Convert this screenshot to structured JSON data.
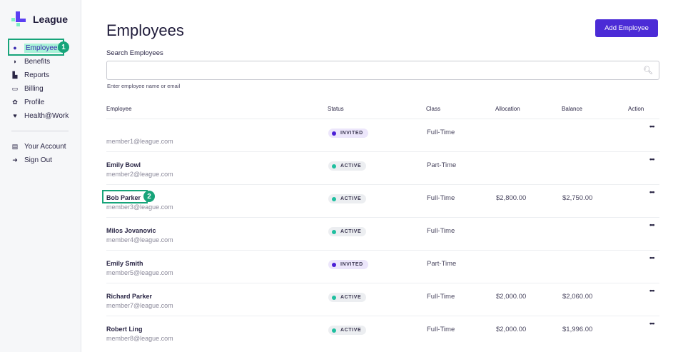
{
  "brand": {
    "name": "League"
  },
  "sidebar": {
    "items": [
      {
        "label": "Employees",
        "icon": "user-icon",
        "glyph": "●"
      },
      {
        "label": "Benefits",
        "icon": "shield-icon",
        "glyph": "◗"
      },
      {
        "label": "Reports",
        "icon": "chart-icon",
        "glyph": "▙"
      },
      {
        "label": "Billing",
        "icon": "credit-card-icon",
        "glyph": "▭"
      },
      {
        "label": "Profile",
        "icon": "gear-icon",
        "glyph": "✿"
      },
      {
        "label": "Health@Work",
        "icon": "heart-icon",
        "glyph": "♥"
      }
    ],
    "account_items": [
      {
        "label": "Your Account",
        "icon": "id-card-icon",
        "glyph": "▤"
      },
      {
        "label": "Sign Out",
        "icon": "sign-out-icon",
        "glyph": "➜"
      }
    ]
  },
  "annotations": [
    "1",
    "2"
  ],
  "page": {
    "title": "Employees",
    "add_button": "Add Employee",
    "search_label": "Search Employees",
    "search_value": "",
    "search_hint": "Enter employee name or email"
  },
  "table": {
    "headers": [
      "Employee",
      "Status",
      "Class",
      "Allocation",
      "Balance",
      "Action"
    ],
    "rows": [
      {
        "name": "",
        "email": "member1@league.com",
        "status": "INVITED",
        "class": "Full-Time",
        "allocation": "",
        "balance": ""
      },
      {
        "name": "Emily Bowl",
        "email": "member2@league.com",
        "status": "ACTIVE",
        "class": "Part-Time",
        "allocation": "",
        "balance": ""
      },
      {
        "name": "Bob Parker",
        "email": "member3@league.com",
        "status": "ACTIVE",
        "class": "Full-Time",
        "allocation": "$2,800.00",
        "balance": "$2,750.00"
      },
      {
        "name": "Milos Jovanovic",
        "email": "member4@league.com",
        "status": "ACTIVE",
        "class": "Full-Time",
        "allocation": "",
        "balance": ""
      },
      {
        "name": "Emily Smith",
        "email": "member5@league.com",
        "status": "INVITED",
        "class": "Part-Time",
        "allocation": "",
        "balance": ""
      },
      {
        "name": "Richard Parker",
        "email": "member7@league.com",
        "status": "ACTIVE",
        "class": "Full-Time",
        "allocation": "$2,000.00",
        "balance": "$2,060.00"
      },
      {
        "name": "Robert Ling",
        "email": "member8@league.com",
        "status": "ACTIVE",
        "class": "Full-Time",
        "allocation": "$2,000.00",
        "balance": "$1,996.00"
      }
    ],
    "action_glyph": "•••"
  },
  "colors": {
    "accent": "#4b2bd6",
    "highlight": "#17a47a",
    "active": "#1fbf9f",
    "invited": "#4b1fd6"
  }
}
